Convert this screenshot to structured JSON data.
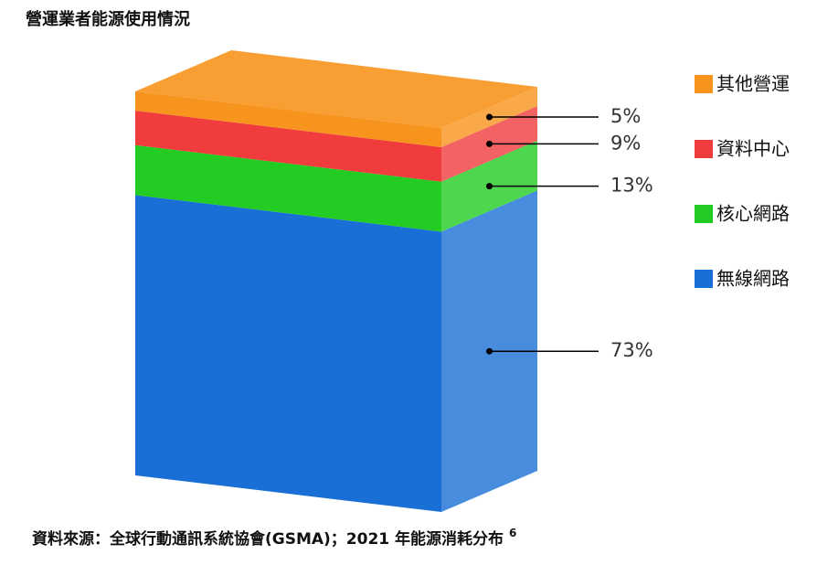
{
  "chart_data": {
    "type": "stacked",
    "title": "營運業者能源使用情況",
    "source": "資料來源：全球行動通訊系統協會(GSMA)；2021 年能源消耗分布",
    "footnote": "6",
    "series": [
      {
        "name": "其他營運",
        "color": "#f7941d",
        "values": [
          5
        ],
        "value_labels": [
          "5%"
        ]
      },
      {
        "name": "資料中心",
        "color": "#f03c3c",
        "values": [
          9
        ],
        "value_labels": [
          "9%"
        ]
      },
      {
        "name": "核心網路",
        "color": "#22cc22",
        "values": [
          13
        ],
        "value_labels": [
          "13%"
        ]
      },
      {
        "name": "無線網路",
        "color": "#1a6fd6",
        "values": [
          73
        ],
        "value_labels": [
          "73%"
        ]
      }
    ]
  }
}
